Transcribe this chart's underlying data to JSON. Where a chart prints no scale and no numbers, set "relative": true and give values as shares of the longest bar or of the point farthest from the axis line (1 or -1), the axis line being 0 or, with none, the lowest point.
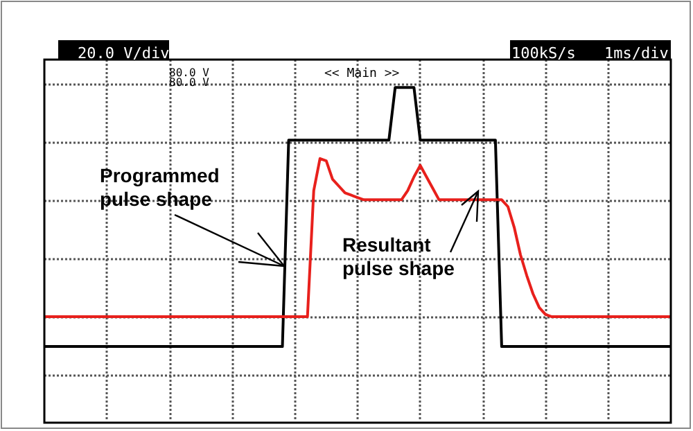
{
  "chart_data": {
    "type": "line",
    "relative": true,
    "grid": true,
    "marker": "none",
    "line_style": "solid",
    "categories": [
      null,
      null,
      null,
      null,
      null,
      null,
      null,
      null,
      null,
      null,
      null,
      null,
      null,
      null,
      null,
      null,
      null,
      null,
      null,
      null,
      null,
      null,
      null,
      null,
      null,
      null,
      null,
      null,
      null,
      null,
      null,
      null,
      null,
      null,
      null,
      null,
      null,
      null,
      null,
      null,
      null,
      null,
      null,
      null,
      null,
      null,
      null,
      null,
      null,
      null,
      null,
      null,
      null,
      null,
      null,
      null,
      null,
      null,
      null,
      null,
      null,
      null,
      null,
      null,
      null,
      null,
      null,
      null,
      null,
      null,
      null,
      null,
      null,
      null,
      null,
      null,
      null,
      null,
      null,
      null,
      null,
      null,
      null,
      null,
      null,
      null,
      null,
      null,
      null,
      null,
      null,
      null,
      null,
      null,
      null,
      null,
      null,
      null,
      null,
      null,
      null
    ],
    "series": [
      {
        "color": "#000000",
        "values": [
          -0.13,
          -0.13,
          -0.13,
          -0.13,
          -0.13,
          -0.13,
          -0.13,
          -0.13,
          -0.13,
          -0.13,
          -0.13,
          -0.13,
          -0.13,
          -0.13,
          -0.13,
          -0.13,
          -0.13,
          -0.13,
          -0.13,
          -0.13,
          -0.13,
          -0.13,
          -0.13,
          -0.13,
          -0.13,
          -0.13,
          -0.13,
          -0.13,
          -0.13,
          -0.13,
          -0.13,
          -0.13,
          -0.13,
          -0.13,
          -0.13,
          -0.13,
          -0.13,
          -0.13,
          -0.13,
          0.77,
          0.77,
          0.77,
          0.77,
          0.77,
          0.77,
          0.77,
          0.77,
          0.77,
          0.77,
          0.77,
          0.77,
          0.77,
          0.77,
          0.77,
          0.77,
          0.77,
          1,
          1,
          1,
          1,
          0.77,
          0.77,
          0.77,
          0.77,
          0.77,
          0.77,
          0.77,
          0.77,
          0.77,
          0.77,
          0.77,
          0.77,
          0.77,
          -0.13,
          -0.13,
          -0.13,
          -0.13,
          -0.13,
          -0.13,
          -0.13,
          -0.13,
          -0.13,
          -0.13,
          -0.13,
          -0.13,
          -0.13,
          -0.13,
          -0.13,
          -0.13,
          -0.13,
          -0.13,
          -0.13,
          -0.13,
          -0.13,
          -0.13,
          -0.13,
          -0.13,
          -0.13,
          -0.13,
          -0.13,
          -0.13
        ]
      },
      {
        "color": "#e8201c",
        "values": [
          0,
          0,
          0,
          0,
          0,
          0,
          0,
          0,
          0,
          0,
          0,
          0,
          0,
          0,
          0,
          0,
          0,
          0,
          0,
          0,
          0,
          0,
          0,
          0,
          0,
          0,
          0,
          0,
          0,
          0,
          0,
          0,
          0,
          0,
          0,
          0,
          0,
          0,
          0,
          0,
          0,
          0,
          0,
          0.55,
          0.69,
          0.68,
          0.6,
          0.57,
          0.54,
          0.53,
          0.52,
          0.51,
          0.51,
          0.51,
          0.51,
          0.51,
          0.51,
          0.51,
          0.55,
          0.61,
          0.66,
          0.61,
          0.56,
          0.51,
          0.51,
          0.51,
          0.51,
          0.51,
          0.51,
          0.51,
          0.51,
          0.51,
          0.51,
          0.51,
          0.48,
          0.39,
          0.27,
          0.18,
          0.1,
          0.04,
          0.01,
          0,
          0,
          0,
          0,
          0,
          0,
          0,
          0,
          0,
          0,
          0,
          0,
          0,
          0,
          0,
          0,
          0,
          0,
          0,
          0
        ]
      }
    ],
    "annotations": [
      "20.0 V/div",
      "100kS/s",
      "1ms/div",
      "80.0 V",
      "80.0 V",
      "<< Main >>",
      "Programmed\npulse shape",
      "Resultant\npulse shape"
    ]
  }
}
